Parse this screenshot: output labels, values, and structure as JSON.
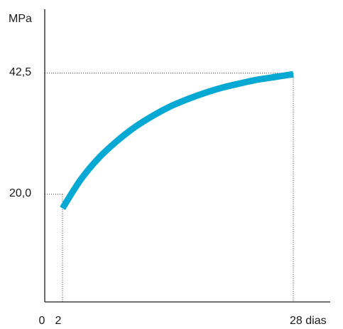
{
  "chart_data": {
    "type": "line",
    "title": "",
    "ylabel": "MPa",
    "xlabel": "",
    "x_tick_labels": [
      "0",
      "2",
      "28 dias"
    ],
    "y_tick_labels": [
      "20,0",
      "42,5"
    ],
    "xlim": [
      0,
      30.5
    ],
    "ylim": [
      0,
      50.6
    ],
    "series": [
      {
        "color": "#05a9d3",
        "x": [
          2,
          4,
          6,
          8,
          10,
          12,
          14,
          16,
          18,
          20,
          22,
          24,
          26,
          28
        ],
        "y": [
          17.4,
          22.6,
          26.6,
          29.7,
          32.3,
          34.4,
          36.2,
          37.6,
          38.8,
          39.8,
          40.6,
          41.3,
          41.8,
          42.3
        ]
      }
    ],
    "reference_lines": [
      {
        "x": 2,
        "y": 20.0
      },
      {
        "x": 28,
        "y": 42.5
      }
    ],
    "grid": false,
    "legend": "none"
  }
}
